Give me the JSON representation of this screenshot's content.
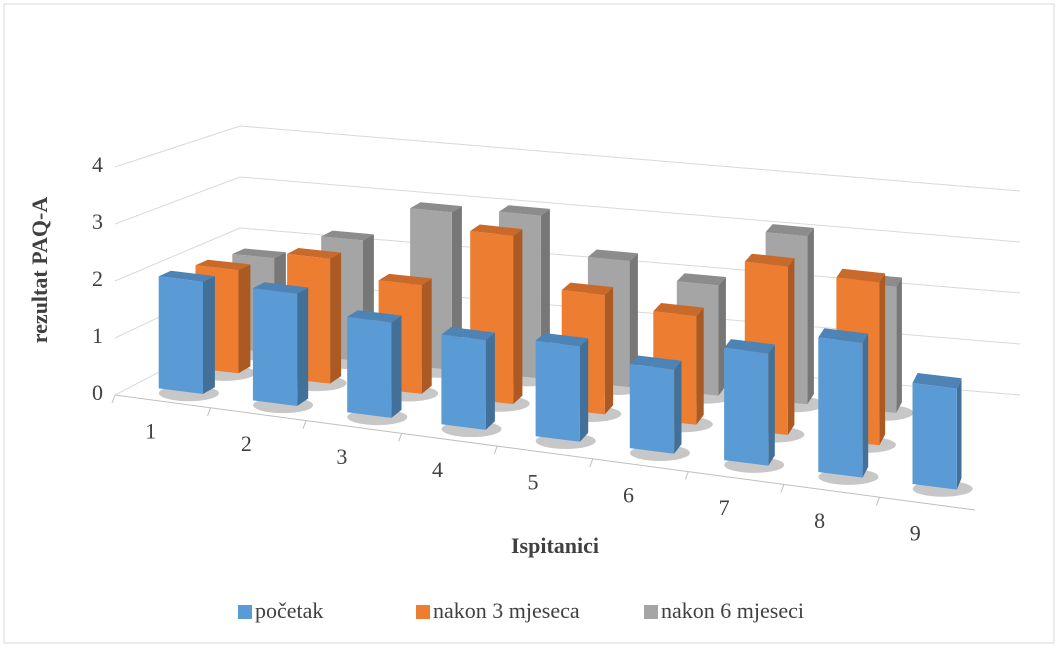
{
  "chart_data": {
    "type": "bar3d",
    "y_label": "rezultat PAQ-A",
    "x_label": "Ispitanici",
    "categories": [
      "1",
      "2",
      "3",
      "4",
      "5",
      "6",
      "7",
      "8",
      "9"
    ],
    "series": [
      {
        "name": "početak",
        "color": "#5b9bd5",
        "values": [
          2.0,
          2.0,
          1.7,
          1.6,
          1.7,
          1.5,
          2.0,
          2.4,
          1.8
        ]
      },
      {
        "name": "nakon 3 mjeseca",
        "color": "#ed7d31",
        "values": [
          1.9,
          2.3,
          2.0,
          3.1,
          2.2,
          2.0,
          3.1,
          3.0,
          null
        ]
      },
      {
        "name": "nakon 6 mjeseci",
        "color": "#a5a5a5",
        "values": [
          1.8,
          2.3,
          3.0,
          3.1,
          2.4,
          2.1,
          3.2,
          2.4,
          null
        ]
      }
    ],
    "ylim": [
      0,
      4
    ],
    "yticks": [
      0,
      1,
      2,
      3,
      4
    ],
    "grid": true,
    "legend": "bottom"
  }
}
